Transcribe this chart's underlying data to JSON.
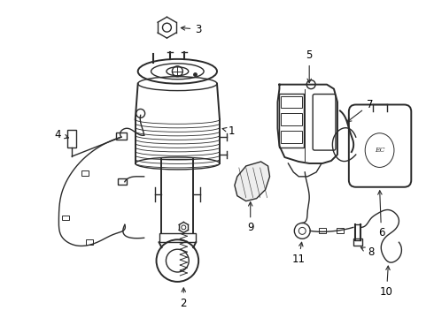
{
  "background_color": "#ffffff",
  "line_color": "#2a2a2a",
  "label_fontsize": 8.5,
  "fig_width": 4.9,
  "fig_height": 3.6,
  "dpi": 100
}
